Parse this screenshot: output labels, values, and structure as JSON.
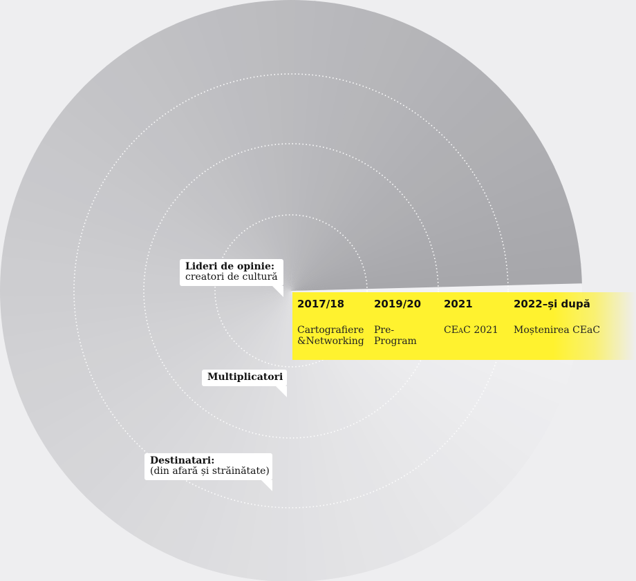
{
  "timeline": [
    {
      "year": "2017/18",
      "desc": [
        "Cartografiere",
        "&Networking"
      ]
    },
    {
      "year": "2019/20",
      "desc": [
        "Pre-",
        "Program"
      ]
    },
    {
      "year": "2021",
      "desc": [
        "CEaC 2021"
      ]
    },
    {
      "year": "2022–și după",
      "desc": [
        "Moștenirea CEaC"
      ]
    }
  ],
  "callouts": {
    "leaders": {
      "title": "Lideri de opinie:",
      "subtitle": "creatori de cultură"
    },
    "multipliers": {
      "title": "Multiplicatori"
    },
    "recipients": {
      "title": "Destinatari:",
      "subtitle": "(din afară și străinătate)"
    }
  },
  "colors": {
    "highlight": "#fff22f",
    "disc_dark": "#a7a7ab",
    "disc_light": "#f2f2f4",
    "ring": "#ffffff"
  }
}
